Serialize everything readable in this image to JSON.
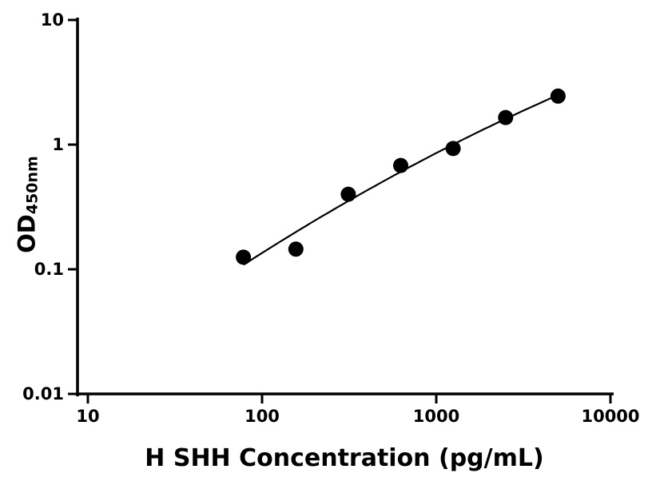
{
  "chart_data": {
    "type": "scatter",
    "title": "",
    "xlabel": "H SHH Concentration (pg/mL)",
    "ylabel": "OD450nm",
    "ylabel_main": "OD",
    "ylabel_sub": "450nm",
    "x_scale": "log",
    "y_scale": "log",
    "xlim": [
      10,
      10000
    ],
    "ylim": [
      0.01,
      10
    ],
    "grid": false,
    "legend": "none",
    "x_ticks": [
      {
        "value": 10,
        "label": "10"
      },
      {
        "value": 100,
        "label": "100"
      },
      {
        "value": 1000,
        "label": "1000"
      },
      {
        "value": 10000,
        "label": "10000"
      }
    ],
    "y_ticks": [
      {
        "value": 10,
        "label": "10"
      },
      {
        "value": 1,
        "label": "1"
      },
      {
        "value": 0.1,
        "label": "0.1"
      },
      {
        "value": 0.01,
        "label": "0.01"
      }
    ],
    "points": [
      {
        "x": 78.1,
        "y": 0.125
      },
      {
        "x": 156.3,
        "y": 0.145
      },
      {
        "x": 312.5,
        "y": 0.4
      },
      {
        "x": 625,
        "y": 0.68
      },
      {
        "x": 1250,
        "y": 0.93
      },
      {
        "x": 2500,
        "y": 1.65
      },
      {
        "x": 5000,
        "y": 2.45
      }
    ],
    "curve_fit": "quadratic-in-loglog",
    "marker": "filled-circle",
    "marker_color": "#000000",
    "line_color": "#000000",
    "axis_color": "#000000",
    "background": "#ffffff"
  }
}
